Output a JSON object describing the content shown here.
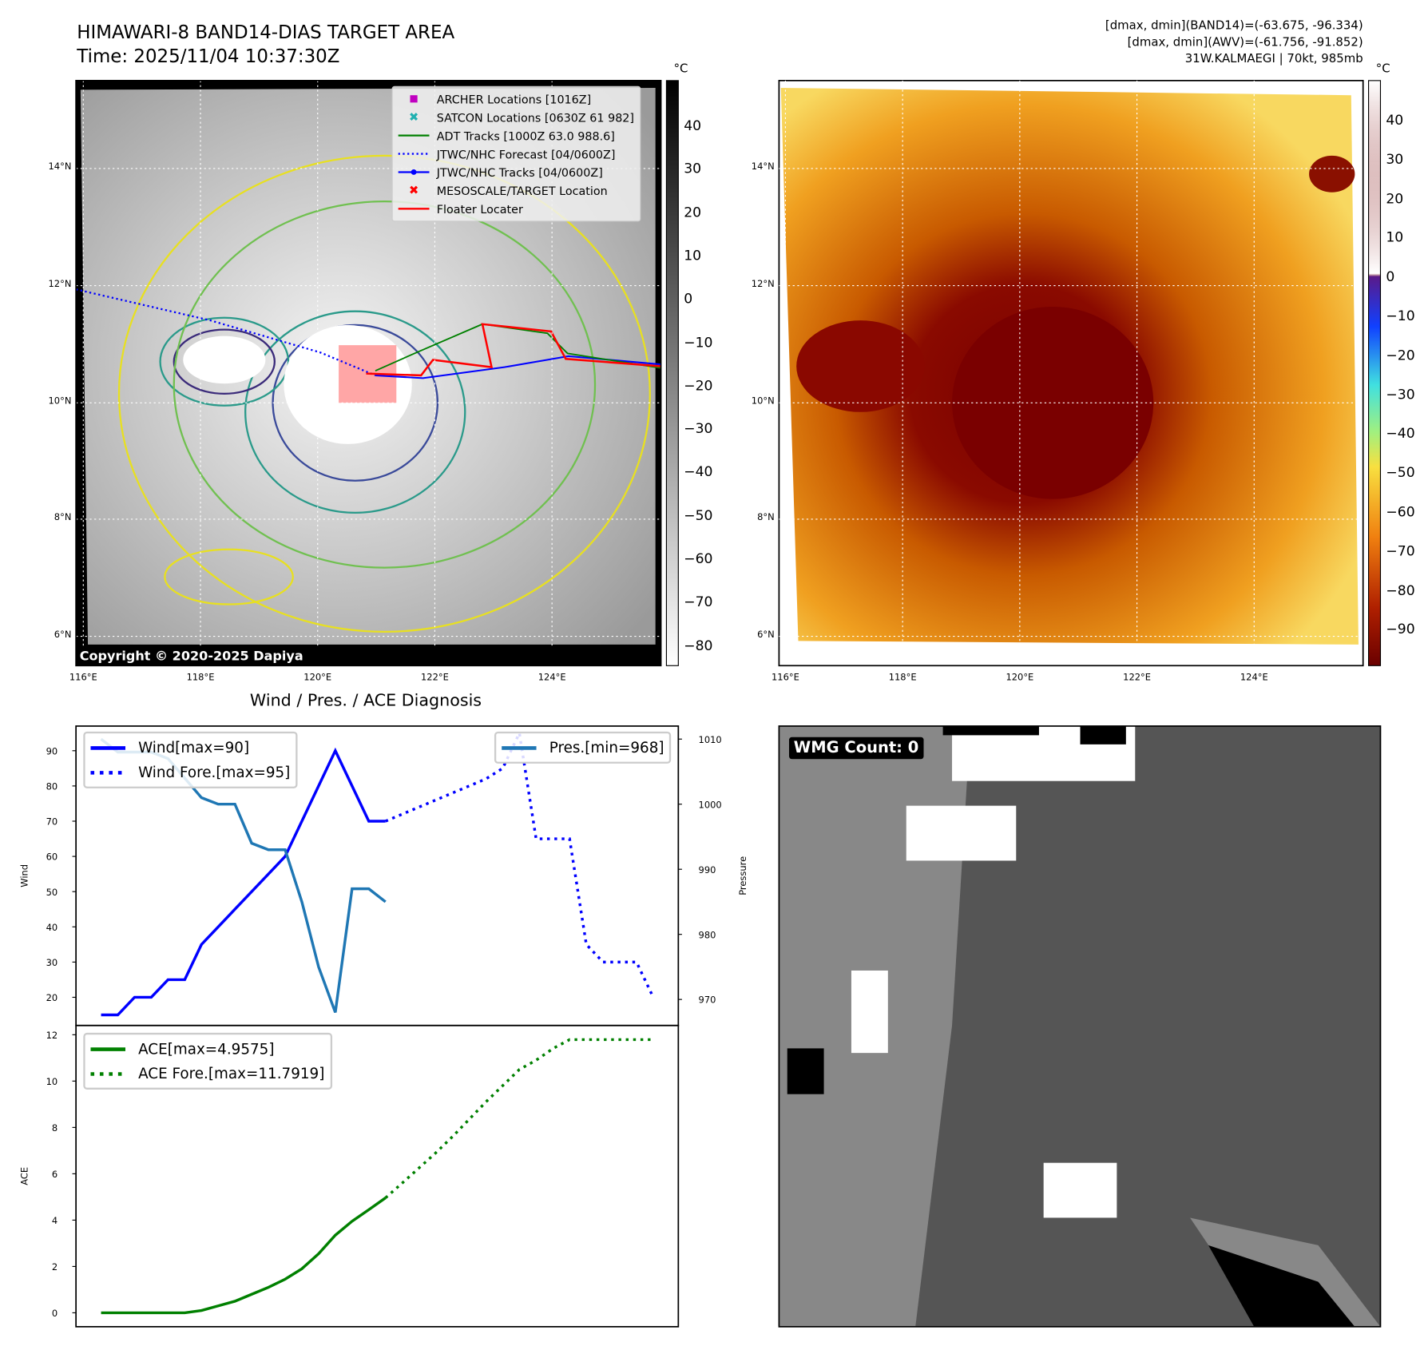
{
  "header": {
    "title": "HIMAWARI-8 BAND14-DIAS TARGET AREA",
    "time": "Time: 2025/11/04 10:37:30Z",
    "stats_line1": "[dmax, dmin](BAND14)=(-63.675, -96.334)",
    "stats_line2": "[dmax, dmin](AWV)=(-61.756, -91.852)",
    "storm_line": "31W.KALMAEGI | 70kt, 985mb"
  },
  "map_left": {
    "colorbar_unit": "°C",
    "colorbar_ticks": [
      "40",
      "30",
      "20",
      "10",
      "0",
      "−10",
      "−20",
      "−30",
      "−40",
      "−50",
      "−60",
      "−70",
      "−80"
    ],
    "lat_labels": [
      "14°N",
      "12°N",
      "10°N",
      "8°N",
      "6°N"
    ],
    "lon_labels": [
      "116°E",
      "118°E",
      "120°E",
      "122°E",
      "124°E"
    ],
    "copyright": "Copyright © 2020-2025 Dapiya",
    "legend": [
      {
        "label": "ARCHER Locations [1016Z]",
        "color": "#c000c0",
        "icon": "square-marker"
      },
      {
        "label": "SATCON Locations [0630Z 61 982]",
        "color": "#20b0b0",
        "icon": "x-marker"
      },
      {
        "label": "ADT Tracks [1000Z 63.0 988.6]",
        "color": "#008000",
        "icon": "solid-line"
      },
      {
        "label": "JTWC/NHC Forecast [04/0600Z]",
        "color": "#0000ff",
        "icon": "dotted-line"
      },
      {
        "label": "JTWC/NHC Tracks [04/0600Z]",
        "color": "#0000ff",
        "icon": "line-dot"
      },
      {
        "label": "MESOSCALE/TARGET Location",
        "color": "#ff0000",
        "icon": "x-marker"
      },
      {
        "label": "Floater Locater",
        "color": "#ff0000",
        "icon": "solid-line"
      }
    ]
  },
  "map_right": {
    "colorbar_unit": "°C",
    "colorbar_ticks": [
      "40",
      "30",
      "20",
      "10",
      "0",
      "−10",
      "−20",
      "−30",
      "−40",
      "−50",
      "−60",
      "−70",
      "−80",
      "−90"
    ],
    "lat_labels": [
      "14°N",
      "12°N",
      "10°N",
      "8°N",
      "6°N"
    ],
    "lon_labels": [
      "116°E",
      "118°E",
      "120°E",
      "122°E",
      "124°E"
    ]
  },
  "wmg": {
    "label": "WMG Count: 0"
  },
  "chart_data": [
    {
      "type": "line",
      "title": "Wind / Pres. / ACE Diagnosis",
      "ylabel": "Wind",
      "y2label": "Pressure",
      "ylim": [
        12,
        97
      ],
      "y2lim": [
        966,
        1012
      ],
      "yticks": [
        20,
        30,
        40,
        50,
        60,
        70,
        80,
        90
      ],
      "y2ticks": [
        970,
        980,
        990,
        1000,
        1010
      ],
      "xlim": [
        -1.5,
        34.5
      ],
      "series": [
        {
          "name": "Wind[max=90]",
          "style": "solid",
          "color": "#0000ff",
          "x": [
            0,
            1,
            2,
            3,
            4,
            5,
            6,
            7,
            8,
            9,
            10,
            11,
            12,
            13,
            14,
            15,
            16,
            17
          ],
          "values": [
            15,
            15,
            20,
            20,
            25,
            25,
            35,
            40,
            45,
            50,
            55,
            60,
            70,
            80,
            90,
            80,
            70,
            70
          ]
        },
        {
          "name": "Wind Fore.[max=95]",
          "style": "dotted",
          "color": "#0000ff",
          "x": [
            17,
            18,
            19,
            20,
            21,
            22,
            23,
            24,
            25,
            26,
            27,
            28,
            29,
            30,
            31,
            32,
            33
          ],
          "values": [
            70,
            72,
            74,
            76,
            78,
            80,
            82,
            85,
            95,
            65,
            65,
            65,
            35,
            30,
            30,
            30,
            20
          ]
        },
        {
          "name": "Pres.[min=968]",
          "style": "solid",
          "color": "#1f77b4",
          "axis": "right",
          "x": [
            0,
            1,
            2,
            3,
            4,
            5,
            6,
            7,
            8,
            9,
            10,
            11,
            12,
            13,
            14,
            15,
            16,
            17
          ],
          "values": [
            1010,
            1008,
            1008,
            1008,
            1007,
            1004,
            1001,
            1000,
            1000,
            994,
            993,
            993,
            985,
            975,
            968,
            987,
            987,
            985
          ]
        }
      ]
    },
    {
      "type": "line",
      "ylabel": "ACE",
      "ylim": [
        -0.6,
        12.4
      ],
      "yticks": [
        0,
        2,
        4,
        6,
        8,
        10,
        12
      ],
      "xlim": [
        -1.5,
        34.5
      ],
      "series": [
        {
          "name": "ACE[max=4.9575]",
          "style": "solid",
          "color": "#008000",
          "x": [
            0,
            1,
            2,
            3,
            4,
            5,
            6,
            7,
            8,
            9,
            10,
            11,
            12,
            13,
            14,
            15,
            16,
            17
          ],
          "values": [
            0,
            0,
            0,
            0,
            0,
            0,
            0.1,
            0.3,
            0.5,
            0.8,
            1.1,
            1.45,
            1.9,
            2.55,
            3.35,
            3.95,
            4.45,
            4.96
          ]
        },
        {
          "name": "ACE Fore.[max=11.7919]",
          "style": "dotted",
          "color": "#008000",
          "x": [
            17,
            18,
            19,
            20,
            21,
            22,
            23,
            24,
            25,
            26,
            27,
            28,
            29,
            30,
            31,
            32,
            33
          ],
          "values": [
            4.96,
            5.6,
            6.25,
            6.9,
            7.6,
            8.35,
            9.1,
            9.8,
            10.5,
            10.9,
            11.4,
            11.79,
            11.79,
            11.79,
            11.79,
            11.79,
            11.79
          ]
        }
      ]
    }
  ]
}
